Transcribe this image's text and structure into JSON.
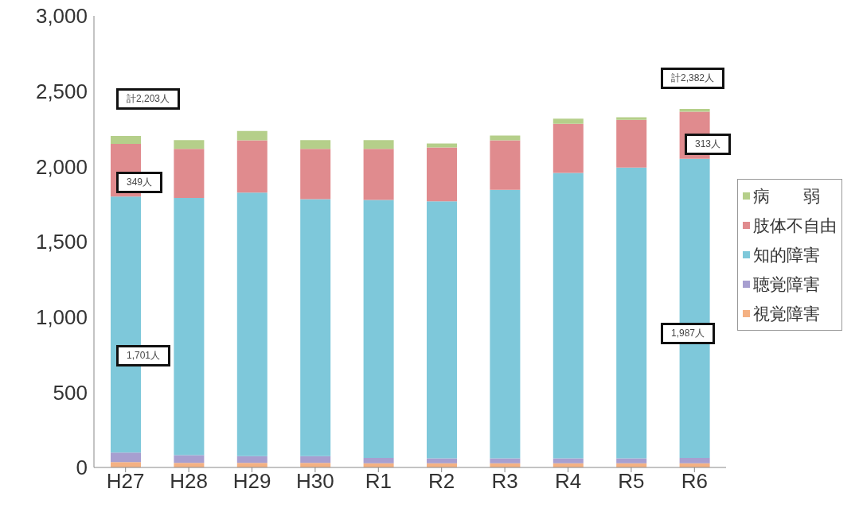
{
  "chart_data": {
    "type": "bar",
    "stacked": true,
    "categories": [
      "H27",
      "H28",
      "H29",
      "H30",
      "R1",
      "R2",
      "R3",
      "R4",
      "R5",
      "R6"
    ],
    "series": [
      {
        "name": "視覚障害",
        "color": "#f4b183",
        "values": [
          35,
          30,
          30,
          30,
          28,
          28,
          28,
          28,
          28,
          28
        ]
      },
      {
        "name": "聴覚障害",
        "color": "#a79fd0",
        "values": [
          64,
          52,
          45,
          45,
          36,
          33,
          33,
          33,
          33,
          36
        ]
      },
      {
        "name": "知的障害",
        "color": "#7ec8da",
        "values": [
          1701,
          1709,
          1751,
          1707,
          1713,
          1707,
          1783,
          1896,
          1931,
          1987
        ]
      },
      {
        "name": "肢体不自由",
        "color": "#e08b8e",
        "values": [
          349,
          326,
          347,
          335,
          340,
          358,
          329,
          326,
          317,
          313
        ]
      },
      {
        "name": "病　　弱",
        "color": "#b5cf8a",
        "values": [
          54,
          58,
          63,
          58,
          58,
          26,
          32,
          35,
          17,
          18
        ]
      }
    ],
    "ylim": [
      0,
      3000
    ],
    "yticks": [
      0,
      {
        "value": 500,
        "label": "500"
      },
      {
        "value": 1000,
        "label": "1,000"
      },
      {
        "value": 1500,
        "label": "1,500"
      },
      {
        "value": 2000,
        "label": "2,000"
      },
      {
        "value": 2500,
        "label": "2,500"
      },
      {
        "value": 3000,
        "label": "3,000"
      }
    ],
    "annotations": [
      "計2,203人",
      "349人",
      "1,701人",
      "計2,382人",
      "313人",
      "1,987人"
    ],
    "grid": false,
    "legend": "right"
  }
}
